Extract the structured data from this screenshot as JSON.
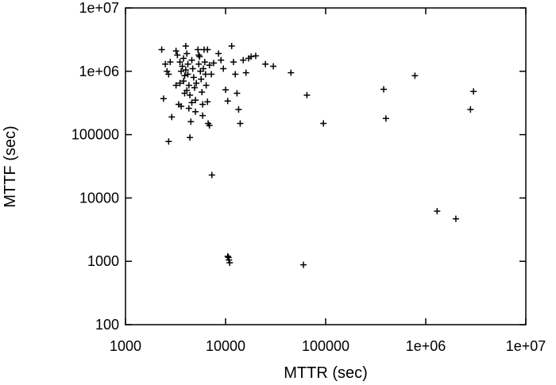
{
  "chart_data": {
    "type": "scatter",
    "title": "",
    "xlabel": "MTTR (sec)",
    "ylabel": "MTTF (sec)",
    "xscale": "log",
    "yscale": "log",
    "xlim": [
      1000,
      10000000
    ],
    "ylim": [
      100,
      10000000
    ],
    "grid": false,
    "marker": "plus",
    "colors": {
      "marker": "#000000",
      "axis": "#000000",
      "background": "#ffffff"
    },
    "x_ticks": [
      {
        "value": 1000,
        "label": "1000"
      },
      {
        "value": 10000,
        "label": "10000"
      },
      {
        "value": 100000,
        "label": "100000"
      },
      {
        "value": 1000000,
        "label": "1e+06"
      },
      {
        "value": 10000000,
        "label": "1e+07"
      }
    ],
    "y_ticks": [
      {
        "value": 100,
        "label": "100"
      },
      {
        "value": 1000,
        "label": "1000"
      },
      {
        "value": 10000,
        "label": "10000"
      },
      {
        "value": 100000,
        "label": "100000"
      },
      {
        "value": 1000000,
        "label": "1e+06"
      },
      {
        "value": 10000000,
        "label": "1e+07"
      }
    ],
    "points": [
      [
        2300,
        2200000
      ],
      [
        2500,
        1300000
      ],
      [
        2600,
        1000000
      ],
      [
        2800,
        1400000
      ],
      [
        2700,
        900000
      ],
      [
        2400,
        370000
      ],
      [
        2900,
        190000
      ],
      [
        2700,
        78000
      ],
      [
        3200,
        2100000
      ],
      [
        3300,
        1800000
      ],
      [
        3500,
        1400000
      ],
      [
        3700,
        1200000
      ],
      [
        3800,
        1600000
      ],
      [
        3600,
        1000000
      ],
      [
        3800,
        700000
      ],
      [
        3500,
        650000
      ],
      [
        3600,
        280000
      ],
      [
        3900,
        450000
      ],
      [
        4000,
        2500000
      ],
      [
        4100,
        1900000
      ],
      [
        4200,
        1300000
      ],
      [
        4200,
        900000
      ],
      [
        4300,
        600000
      ],
      [
        4400,
        420000
      ],
      [
        4300,
        260000
      ],
      [
        4500,
        160000
      ],
      [
        4400,
        90000
      ],
      [
        4600,
        1500000
      ],
      [
        4700,
        1100000
      ],
      [
        4800,
        800000
      ],
      [
        4900,
        550000
      ],
      [
        5000,
        350000
      ],
      [
        5000,
        230000
      ],
      [
        5300,
        2200000
      ],
      [
        5400,
        1800000
      ],
      [
        5400,
        1300000
      ],
      [
        5600,
        1000000
      ],
      [
        5700,
        750000
      ],
      [
        5800,
        470000
      ],
      [
        5900,
        300000
      ],
      [
        5900,
        200000
      ],
      [
        6100,
        2200000
      ],
      [
        6200,
        1400000
      ],
      [
        6300,
        900000
      ],
      [
        6400,
        600000
      ],
      [
        6600,
        330000
      ],
      [
        6700,
        150000
      ],
      [
        6600,
        2200000
      ],
      [
        6900,
        1250000
      ],
      [
        7200,
        900000
      ],
      [
        6900,
        140000
      ],
      [
        7300,
        23000
      ],
      [
        8500,
        1900000
      ],
      [
        9000,
        1500000
      ],
      [
        9500,
        1100000
      ],
      [
        10000,
        510000
      ],
      [
        10500,
        340000
      ],
      [
        10500,
        1200
      ],
      [
        10800,
        1050
      ],
      [
        11000,
        950
      ],
      [
        10700,
        1150
      ],
      [
        11500,
        2500000
      ],
      [
        12000,
        1400000
      ],
      [
        12500,
        900000
      ],
      [
        13000,
        450000
      ],
      [
        13500,
        250000
      ],
      [
        14000,
        150000
      ],
      [
        15000,
        1500000
      ],
      [
        16000,
        950000
      ],
      [
        17000,
        1600000
      ],
      [
        18000,
        1700000
      ],
      [
        20000,
        1750000
      ],
      [
        25000,
        1300000
      ],
      [
        30000,
        1200000
      ],
      [
        45000,
        950000
      ],
      [
        65000,
        420000
      ],
      [
        60000,
        880
      ],
      [
        95000,
        150000
      ],
      [
        380000,
        520000
      ],
      [
        400000,
        180000
      ],
      [
        780000,
        850000
      ],
      [
        1300000,
        6200
      ],
      [
        2000000,
        4700
      ],
      [
        2800000,
        250000
      ],
      [
        3000000,
        480000
      ],
      [
        3200,
        600000
      ],
      [
        3400,
        300000
      ],
      [
        3900,
        850000
      ],
      [
        4100,
        500000
      ],
      [
        4600,
        320000
      ],
      [
        5100,
        650000
      ],
      [
        5500,
        1700000
      ],
      [
        6000,
        1100000
      ],
      [
        7600,
        1350000
      ],
      [
        4000,
        1050000
      ]
    ]
  }
}
